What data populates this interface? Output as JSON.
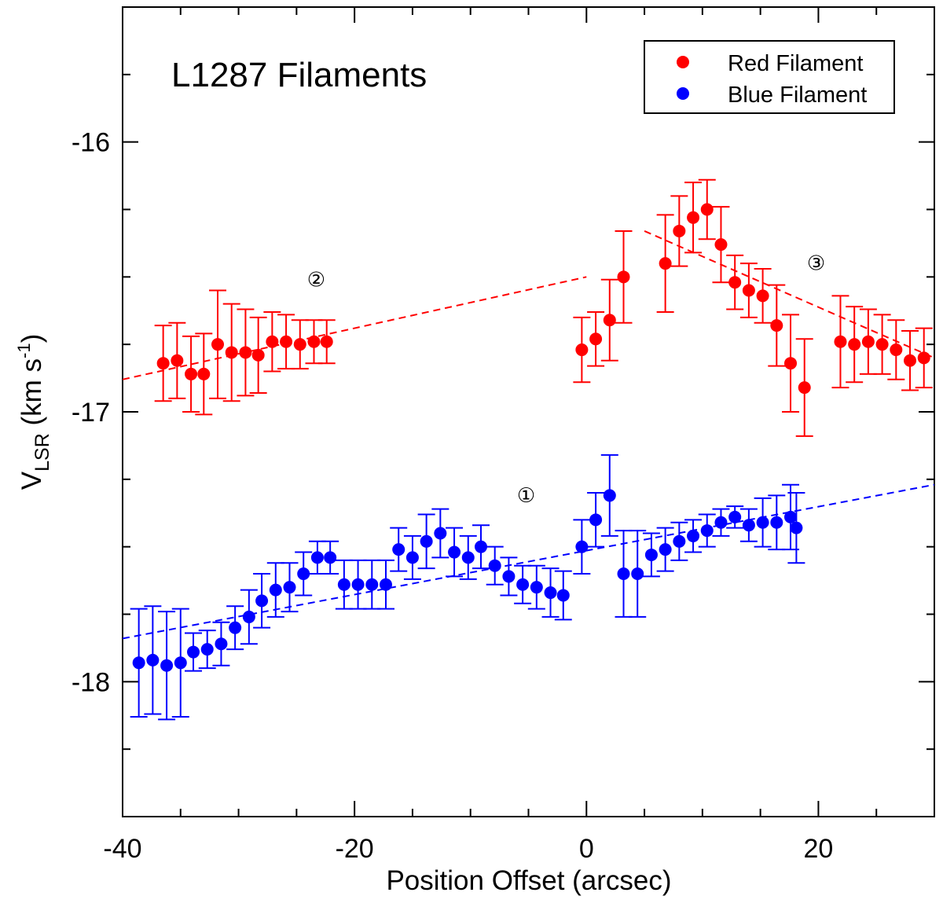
{
  "chart_data": {
    "type": "scatter",
    "title": "L1287 Filaments",
    "xlabel": "Position Offset (arcsec)",
    "ylabel": {
      "main": "V",
      "sub": "LSR",
      "units": " (km s",
      "sup": "-1",
      "close": ")"
    },
    "xlim": [
      -40,
      30
    ],
    "ylim": [
      -18.5,
      -15.5
    ],
    "xticks": [
      -40,
      -20,
      0,
      20
    ],
    "xtick_labels": [
      "-40",
      "-20",
      "0",
      "20"
    ],
    "yticks": [
      -18,
      -17,
      -16
    ],
    "ytick_labels": [
      "-18",
      "-17",
      "-16"
    ],
    "legend": {
      "position": "top-right",
      "entries": [
        "Red Filament",
        "Blue Filament"
      ]
    },
    "annotations": [
      {
        "text": "①",
        "x": -5.2,
        "y": -17.3
      },
      {
        "text": "②",
        "x": -23.3,
        "y": -16.5
      },
      {
        "text": "③",
        "x": 19.8,
        "y": -16.44
      }
    ],
    "series": [
      {
        "name": "Red Filament",
        "color": "#ff0000",
        "x": [
          -36.5,
          -35.3,
          -34.1,
          -33.0,
          -31.8,
          -30.6,
          -29.4,
          -28.3,
          -27.1,
          -25.9,
          -24.7,
          -23.5,
          -22.4,
          -0.4,
          0.8,
          2.0,
          3.2,
          6.8,
          8.0,
          9.2,
          10.4,
          11.6,
          12.8,
          14.0,
          15.2,
          16.4,
          17.6,
          18.8,
          21.9,
          23.1,
          24.3,
          25.5,
          26.7,
          27.9,
          29.1
        ],
        "y": [
          -16.82,
          -16.81,
          -16.86,
          -16.86,
          -16.75,
          -16.78,
          -16.78,
          -16.79,
          -16.74,
          -16.74,
          -16.75,
          -16.74,
          -16.74,
          -16.77,
          -16.73,
          -16.66,
          -16.5,
          -16.45,
          -16.33,
          -16.28,
          -16.25,
          -16.38,
          -16.52,
          -16.55,
          -16.57,
          -16.68,
          -16.82,
          -16.91,
          -16.74,
          -16.75,
          -16.74,
          -16.75,
          -16.77,
          -16.81,
          -16.8
        ],
        "err": [
          0.14,
          0.14,
          0.14,
          0.15,
          0.2,
          0.18,
          0.16,
          0.14,
          0.11,
          0.1,
          0.09,
          0.08,
          0.08,
          0.12,
          0.1,
          0.15,
          0.17,
          0.18,
          0.13,
          0.13,
          0.11,
          0.14,
          0.1,
          0.1,
          0.1,
          0.15,
          0.18,
          0.18,
          0.17,
          0.14,
          0.12,
          0.11,
          0.11,
          0.11,
          0.11
        ],
        "fits": [
          {
            "x": [
              -40,
              0
            ],
            "y": [
              -16.88,
              -16.5
            ]
          },
          {
            "x": [
              5,
              30
            ],
            "y": [
              -16.33,
              -16.8
            ]
          }
        ]
      },
      {
        "name": "Blue Filament",
        "color": "#0000ff",
        "x": [
          -38.6,
          -37.4,
          -36.2,
          -35.0,
          -33.9,
          -32.7,
          -31.5,
          -30.3,
          -29.1,
          -28.0,
          -26.8,
          -25.6,
          -24.4,
          -23.2,
          -22.1,
          -20.9,
          -19.7,
          -18.5,
          -17.3,
          -16.2,
          -15.0,
          -13.8,
          -12.6,
          -11.4,
          -10.2,
          -9.1,
          -7.9,
          -6.7,
          -5.5,
          -4.3,
          -3.1,
          -2.0,
          -0.4,
          0.8,
          2.0,
          3.2,
          4.4,
          5.6,
          6.8,
          8.0,
          9.2,
          10.4,
          11.6,
          12.8,
          14.0,
          15.2,
          16.4,
          17.6,
          18.1
        ],
        "y": [
          -17.93,
          -17.92,
          -17.94,
          -17.93,
          -17.89,
          -17.88,
          -17.86,
          -17.8,
          -17.76,
          -17.7,
          -17.66,
          -17.65,
          -17.6,
          -17.54,
          -17.54,
          -17.64,
          -17.64,
          -17.64,
          -17.64,
          -17.51,
          -17.54,
          -17.48,
          -17.45,
          -17.52,
          -17.54,
          -17.5,
          -17.57,
          -17.61,
          -17.64,
          -17.65,
          -17.67,
          -17.68,
          -17.5,
          -17.4,
          -17.31,
          -17.6,
          -17.6,
          -17.53,
          -17.51,
          -17.48,
          -17.46,
          -17.44,
          -17.41,
          -17.39,
          -17.42,
          -17.41,
          -17.41,
          -17.39,
          -17.43
        ],
        "err": [
          0.2,
          0.2,
          0.2,
          0.2,
          0.07,
          0.07,
          0.08,
          0.08,
          0.1,
          0.1,
          0.1,
          0.09,
          0.08,
          0.06,
          0.06,
          0.09,
          0.09,
          0.09,
          0.09,
          0.08,
          0.08,
          0.1,
          0.09,
          0.09,
          0.08,
          0.08,
          0.07,
          0.07,
          0.07,
          0.08,
          0.09,
          0.09,
          0.1,
          0.1,
          0.15,
          0.16,
          0.16,
          0.08,
          0.08,
          0.07,
          0.06,
          0.06,
          0.05,
          0.04,
          0.06,
          0.09,
          0.1,
          0.12,
          0.13
        ],
        "fits": [
          {
            "x": [
              -40,
              30
            ],
            "y": [
              -17.84,
              -17.27
            ]
          }
        ]
      }
    ]
  }
}
